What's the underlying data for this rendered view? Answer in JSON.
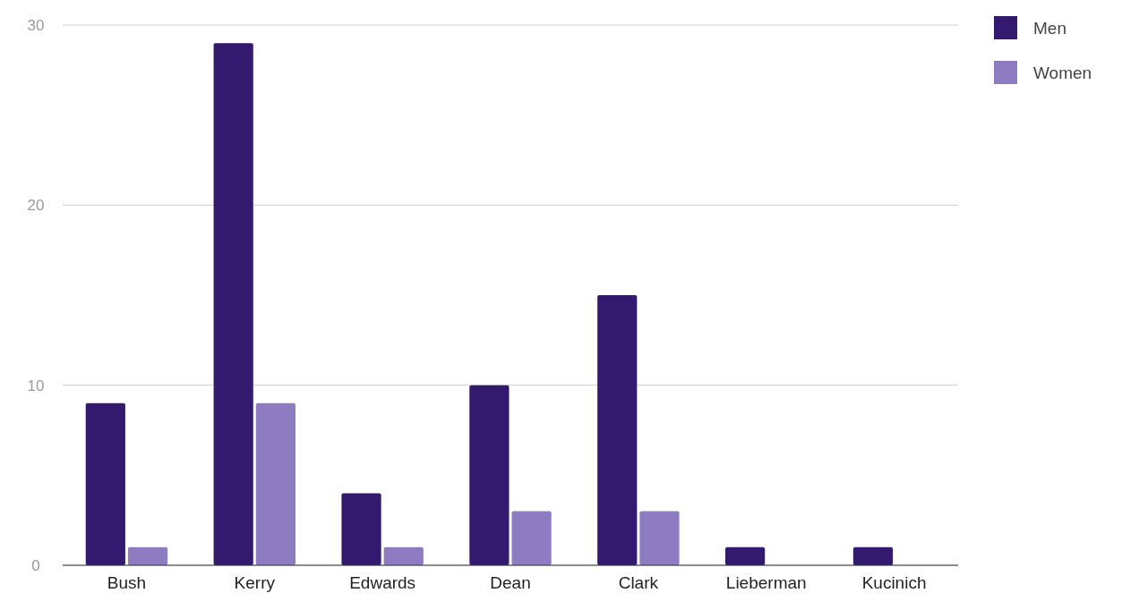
{
  "chart_data": {
    "type": "bar",
    "categories": [
      "Bush",
      "Kerry",
      "Edwards",
      "Dean",
      "Clark",
      "Lieberman",
      "Kucinich"
    ],
    "series": [
      {
        "name": "Men",
        "color": "#341a6e",
        "values": [
          9,
          29,
          4,
          10,
          15,
          1,
          1
        ]
      },
      {
        "name": "Women",
        "color": "#8e7cc3",
        "values": [
          1,
          9,
          1,
          3,
          3,
          0,
          0
        ]
      }
    ],
    "ylim": [
      0,
      30
    ],
    "yticks": [
      0,
      10,
      20,
      30
    ],
    "grid": "y",
    "legend": "top right"
  }
}
